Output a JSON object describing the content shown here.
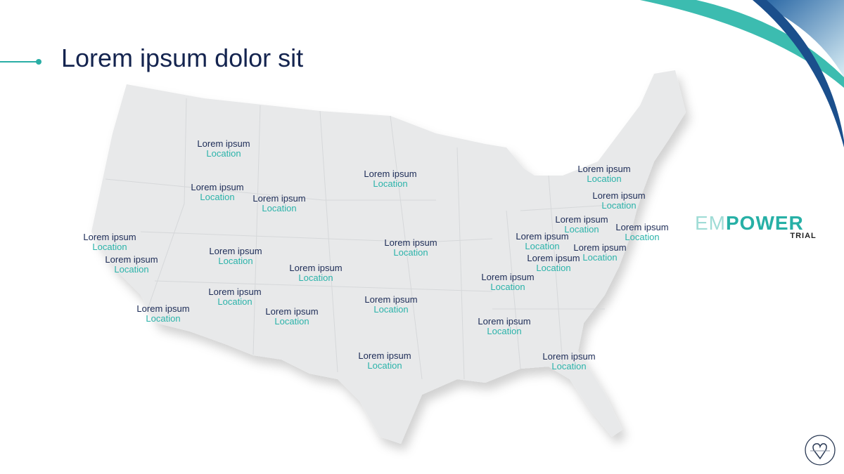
{
  "title": "Lorem ipsum dolor sit",
  "colors": {
    "navy": "#14244f",
    "teal": "#2bb3aa",
    "map_fill": "#e8e9ea"
  },
  "logo": {
    "part1": "EM",
    "part2": "POWER",
    "subtitle": "TRIAL"
  },
  "badge_icon": "heart-pin-icon",
  "locations": [
    {
      "name": "Lorem ipsum",
      "place": "Location"
    },
    {
      "name": "Lorem ipsum",
      "place": "Location"
    },
    {
      "name": "Lorem ipsum",
      "place": "Location"
    },
    {
      "name": "Lorem ipsum",
      "place": "Location"
    },
    {
      "name": "Lorem ipsum",
      "place": "Location"
    },
    {
      "name": "Lorem ipsum",
      "place": "Location"
    },
    {
      "name": "Lorem ipsum",
      "place": "Location"
    },
    {
      "name": "Lorem ipsum",
      "place": "Location"
    },
    {
      "name": "Lorem ipsum",
      "place": "Location"
    },
    {
      "name": "Lorem ipsum",
      "place": "Location"
    },
    {
      "name": "Lorem ipsum",
      "place": "Location"
    },
    {
      "name": "Lorem ipsum",
      "place": "Location"
    },
    {
      "name": "Lorem ipsum",
      "place": "Location"
    },
    {
      "name": "Lorem ipsum",
      "place": "Location"
    },
    {
      "name": "Lorem ipsum",
      "place": "Location"
    },
    {
      "name": "Lorem ipsum",
      "place": "Location"
    },
    {
      "name": "Lorem ipsum",
      "place": "Location"
    },
    {
      "name": "Lorem ipsum",
      "place": "Location"
    },
    {
      "name": "Lorem ipsum",
      "place": "Location"
    },
    {
      "name": "Lorem ipsum",
      "place": "Location"
    },
    {
      "name": "Lorem ipsum",
      "place": "Location"
    },
    {
      "name": "Lorem ipsum",
      "place": "Location"
    },
    {
      "name": "Lorem ipsum",
      "place": "Location"
    },
    {
      "name": "Lorem ipsum",
      "place": "Location"
    }
  ]
}
